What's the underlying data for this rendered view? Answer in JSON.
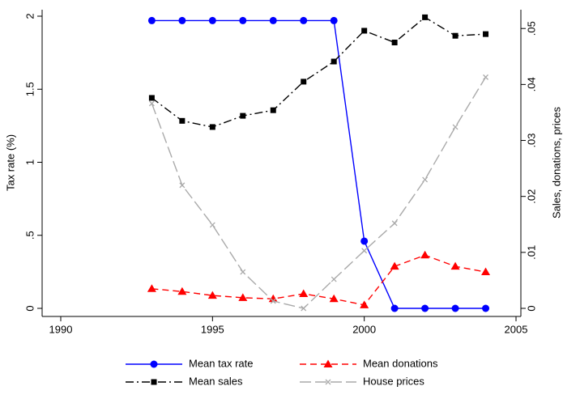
{
  "chart_data": {
    "type": "line",
    "x_label": null,
    "y_label": "Tax rate (%)",
    "y2_label": "Sales, donations, prices",
    "x": [
      1993,
      1994,
      1995,
      1996,
      1997,
      1998,
      1999,
      2000,
      2001,
      2002,
      2003,
      2004
    ],
    "xlim": [
      1990,
      2005
    ],
    "xticks": [
      1990,
      1995,
      2000,
      2005
    ],
    "ylim": [
      0,
      2
    ],
    "yticks": [
      0,
      {
        "value": 0.5,
        "label": ".5"
      },
      1,
      1.5,
      2
    ],
    "y2lim": [
      0,
      0.0522
    ],
    "y2ticks": [
      0,
      {
        "value": 0.01,
        "label": ".01"
      },
      {
        "value": 0.02,
        "label": ".02"
      },
      {
        "value": 0.03,
        "label": ".03"
      },
      {
        "value": 0.04,
        "label": ".04"
      },
      {
        "value": 0.05,
        "label": ".05"
      }
    ],
    "series": [
      {
        "name": "Mean tax rate",
        "color": "#0000ff",
        "marker": "circle",
        "line_style": "solid",
        "values": [
          1.97,
          1.97,
          1.97,
          1.97,
          1.97,
          1.97,
          1.97,
          0.46,
          0,
          0,
          0,
          0
        ]
      },
      {
        "name": "Mean donations",
        "color": "#ff0000",
        "marker": "triangle",
        "line_style": "dash",
        "axis": "y2",
        "values": [
          0.0035,
          0.003,
          0.0023,
          0.0019,
          0.0017,
          0.0026,
          0.0017,
          0.0006,
          0.0075,
          0.0095,
          0.0075,
          0.0065
        ]
      },
      {
        "name": "Mean sales",
        "color": "#000000",
        "marker": "square",
        "line_style": "dashdot",
        "axis": "y2",
        "values": [
          0.0376,
          0.0335,
          0.0324,
          0.0344,
          0.0354,
          0.0405,
          0.0441,
          0.0496,
          0.0475,
          0.052,
          0.0487,
          0.049
        ]
      },
      {
        "name": "House prices",
        "color": "#aaaaaa",
        "marker": "x",
        "line_style": "longdash",
        "axis": "y2",
        "values": [
          0.0366,
          0.022,
          0.0149,
          0.0065,
          0.0013,
          0,
          0.0052,
          0.0103,
          0.0152,
          0.023,
          0.0324,
          0.0413
        ]
      }
    ]
  }
}
